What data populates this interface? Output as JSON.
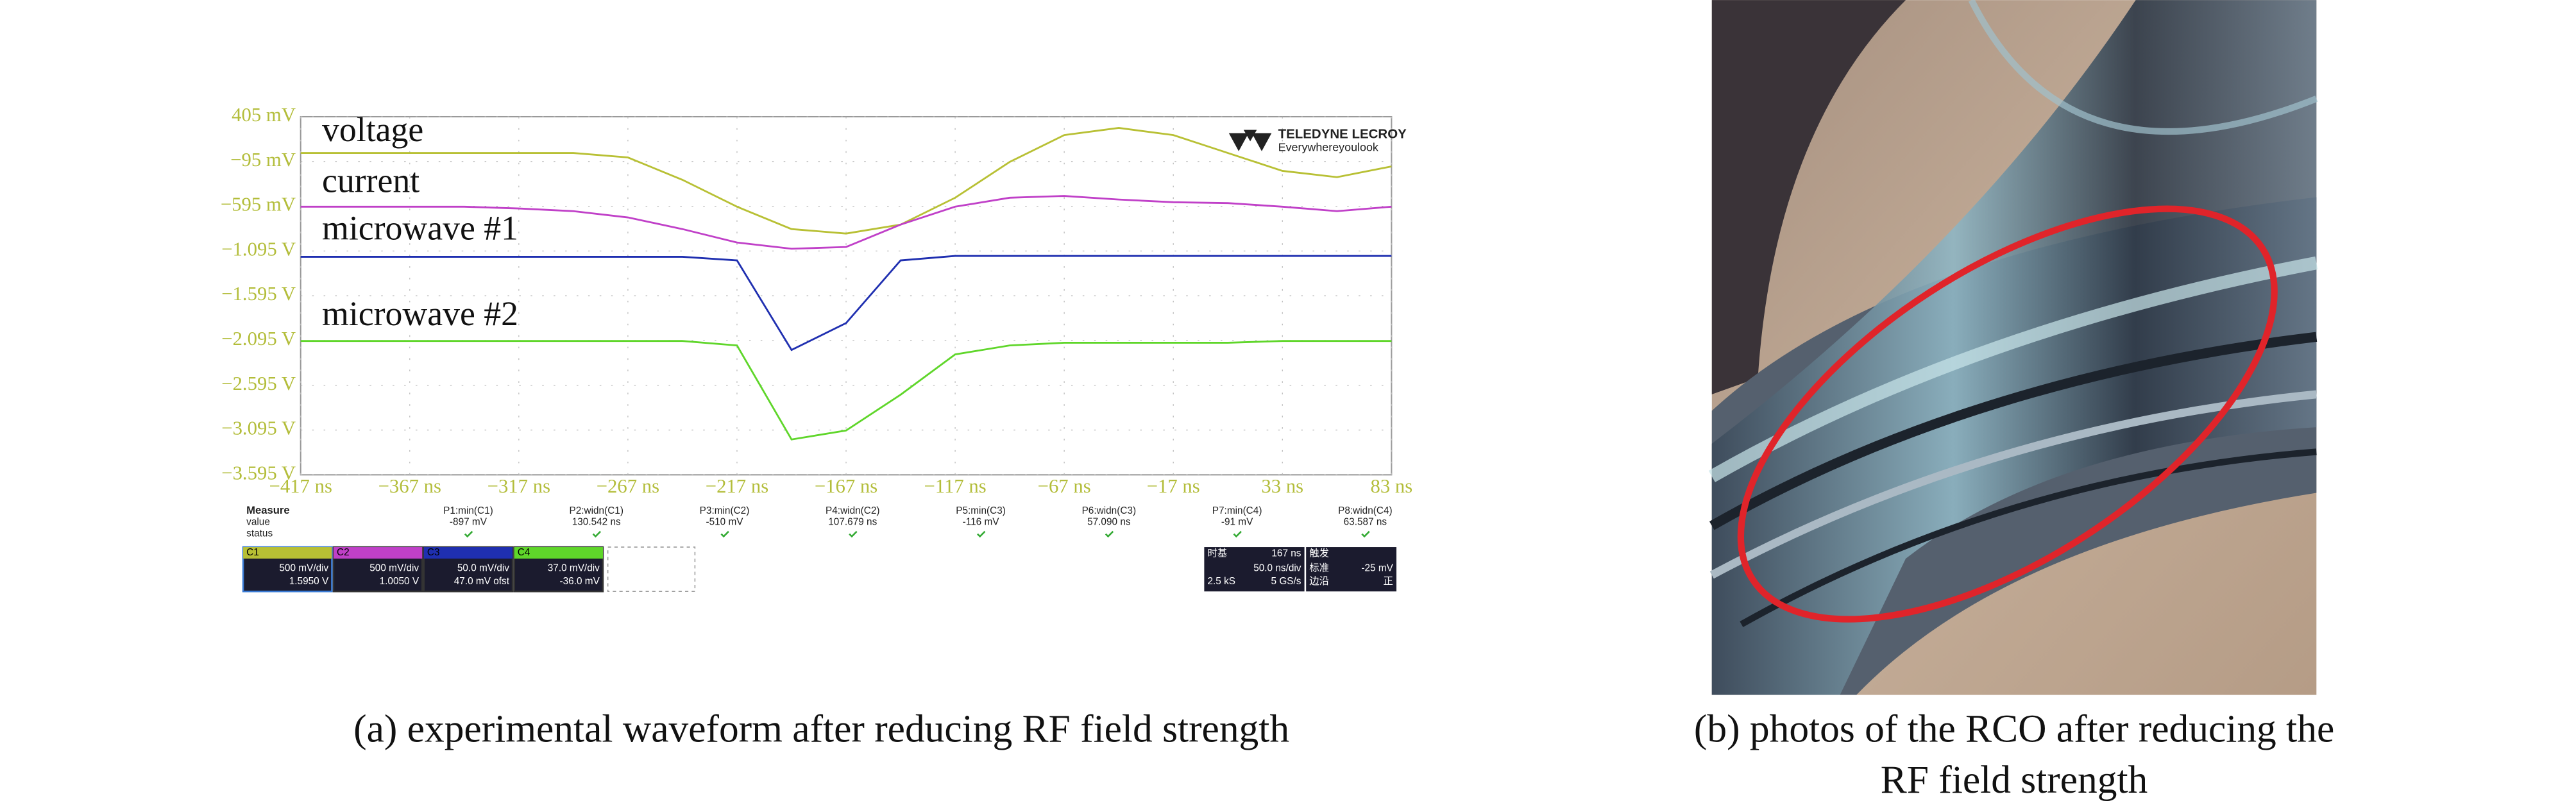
{
  "chart_data": {
    "type": "line",
    "annotations": [
      "voltage",
      "current",
      "microwave #1",
      "microwave #2"
    ],
    "logo": "TELEDYNE LECROY",
    "logo_tagline": "Everywhereyoulook",
    "x": [
      -417,
      -392,
      -367,
      -342,
      -317,
      -292,
      -267,
      -242,
      -217,
      -192,
      -167,
      -142,
      -117,
      -92,
      -67,
      -42,
      -17,
      8,
      33,
      58,
      83
    ],
    "series": [
      {
        "name": "voltage",
        "color": "#b8c034",
        "values": [
          0,
          0,
          0,
          0,
          0,
          0,
          -0.05,
          -0.3,
          -0.6,
          -0.85,
          -0.9,
          -0.8,
          -0.5,
          -0.1,
          0.2,
          0.28,
          0.2,
          0,
          -0.2,
          -0.27,
          -0.15
        ]
      },
      {
        "name": "current",
        "color": "#c040c8",
        "values": [
          -0.6,
          -0.6,
          -0.6,
          -0.6,
          -0.62,
          -0.65,
          -0.72,
          -0.85,
          -1.0,
          -1.07,
          -1.05,
          -0.8,
          -0.6,
          -0.5,
          -0.48,
          -0.52,
          -0.55,
          -0.56,
          -0.6,
          -0.65,
          -0.6
        ]
      },
      {
        "name": "microwave #1",
        "color": "#1f2fb0",
        "values": [
          -1.16,
          -1.16,
          -1.16,
          -1.16,
          -1.16,
          -1.16,
          -1.16,
          -1.16,
          -1.2,
          -2.2,
          -1.9,
          -1.2,
          -1.15,
          -1.15,
          -1.15,
          -1.15,
          -1.15,
          -1.15,
          -1.15,
          -1.15,
          -1.15
        ]
      },
      {
        "name": "microwave #2",
        "color": "#5fd62a",
        "values": [
          -2.1,
          -2.1,
          -2.1,
          -2.1,
          -2.1,
          -2.1,
          -2.1,
          -2.1,
          -2.15,
          -3.2,
          -3.1,
          -2.7,
          -2.25,
          -2.15,
          -2.12,
          -2.12,
          -2.12,
          -2.12,
          -2.1,
          -2.1,
          -2.1
        ]
      }
    ],
    "xlim": [
      -417,
      83
    ],
    "xticks": [
      {
        "value": -417,
        "label": "−417 ns"
      },
      {
        "value": -367,
        "label": "−367 ns"
      },
      {
        "value": -317,
        "label": "−317 ns"
      },
      {
        "value": -267,
        "label": "−267 ns"
      },
      {
        "value": -217,
        "label": "−217 ns"
      },
      {
        "value": -167,
        "label": "−167 ns"
      },
      {
        "value": -117,
        "label": "−117 ns"
      },
      {
        "value": -67,
        "label": "−67 ns"
      },
      {
        "value": -17,
        "label": "−17 ns"
      },
      {
        "value": 33,
        "label": "33 ns"
      },
      {
        "value": 83,
        "label": "83 ns"
      }
    ],
    "ylim": [
      -3.595,
      0.405
    ],
    "yticks": [
      {
        "value": 0.405,
        "label": "405 mV"
      },
      {
        "value": -0.095,
        "label": "−95 mV"
      },
      {
        "value": -0.595,
        "label": "−595 mV"
      },
      {
        "value": -1.095,
        "label": "−1.095 V"
      },
      {
        "value": -1.595,
        "label": "−1.595 V"
      },
      {
        "value": -2.095,
        "label": "−2.095 V"
      },
      {
        "value": -2.595,
        "label": "−2.595 V"
      },
      {
        "value": -3.095,
        "label": "−3.095 V"
      },
      {
        "value": -3.595,
        "label": "−3.595 V"
      }
    ],
    "grid": true
  },
  "scope_panel": {
    "measure_header": "Measure",
    "value_header": "value",
    "status_header": "status",
    "measurements": [
      {
        "name": "P1:min(C1)",
        "value": "-897 mV"
      },
      {
        "name": "P2:widn(C1)",
        "value": "130.542 ns"
      },
      {
        "name": "P3:min(C2)",
        "value": "-510 mV"
      },
      {
        "name": "P4:widn(C2)",
        "value": "107.679 ns"
      },
      {
        "name": "P5:min(C3)",
        "value": "-116 mV"
      },
      {
        "name": "P6:widn(C3)",
        "value": "57.090 ns"
      },
      {
        "name": "P7:min(C4)",
        "value": "-91 mV"
      },
      {
        "name": "P8:widn(C4)",
        "value": "63.587 ns"
      }
    ],
    "channels": [
      {
        "name": "C1",
        "color": "#b8c034",
        "scale": "500 mV/div",
        "offset": "1.5950 V"
      },
      {
        "name": "C2",
        "color": "#c040c8",
        "scale": "500 mV/div",
        "offset": "1.0050 V"
      },
      {
        "name": "C3",
        "color": "#1f2fb0",
        "scale": "50.0 mV/div",
        "offset": "47.0 mV ofst"
      },
      {
        "name": "C4",
        "color": "#5fd62a",
        "scale": "37.0 mV/div",
        "offset": "-36.0 mV"
      }
    ],
    "timebase": {
      "label": "时基",
      "delay": "167 ns",
      "scale": "50.0 ns/div",
      "samples": "2.5 kS",
      "rate": "5 GS/s"
    },
    "trigger": {
      "label": "触发",
      "level": "-25 mV",
      "mode": "标准",
      "type": "边沿",
      "slope": "正"
    }
  },
  "captions": {
    "a": "(a) experimental waveform after reducing RF field strength",
    "b_line1": "(b) photos of the RCO after reducing the",
    "b_line2": "RF field strength"
  }
}
